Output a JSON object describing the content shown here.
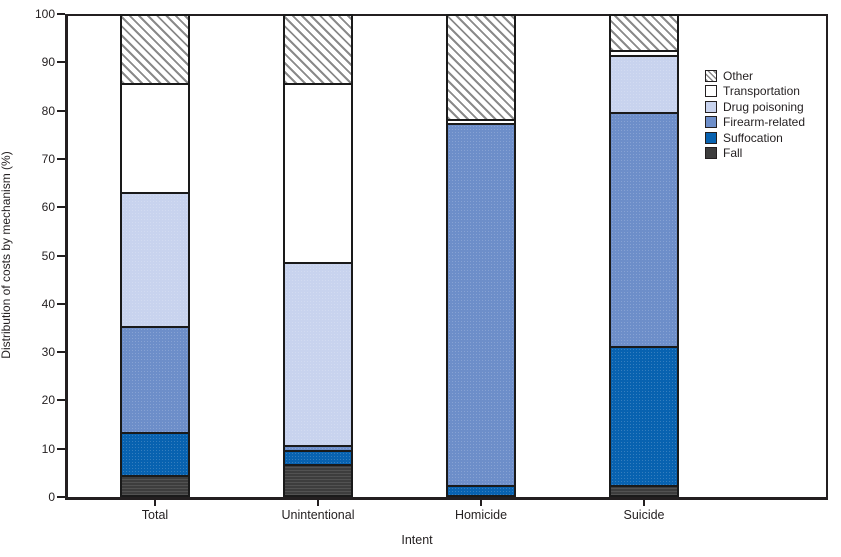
{
  "figure": {
    "ylabel": "Distribution of costs by mechanism (%)",
    "xlabel": "Intent"
  },
  "legend": {
    "items": [
      {
        "label": "Other"
      },
      {
        "label": "Transportation"
      },
      {
        "label": "Drug poisoning"
      },
      {
        "label": "Firearm-related"
      },
      {
        "label": "Suffocation"
      },
      {
        "label": "Fall"
      }
    ]
  },
  "colors": {
    "fall": "#3d3d3d",
    "suffocation": "#0862b0",
    "firearm_related": "#6d8ec9",
    "drug_poisoning": "#c8d3ee",
    "transportation": "#ffffff",
    "other_hatch_line": "#8a8a8a",
    "axis": "#231f20",
    "segment_border": "#1a1a1a"
  },
  "chart_data": {
    "type": "bar",
    "stacked": true,
    "title": "",
    "xlabel": "Intent",
    "ylabel": "Distribution of costs by mechanism (%)",
    "categories": [
      "Total",
      "Unintentional",
      "Homicide",
      "Suicide"
    ],
    "series": [
      {
        "name": "Fall",
        "color": "#3d3d3d",
        "pattern": "fall-texture",
        "values": [
          4.5,
          6.8,
          0,
          2.4
        ]
      },
      {
        "name": "Suffocation",
        "color": "#0862b0",
        "pattern": "dot-texture",
        "values": [
          9.0,
          3.0,
          2.5,
          28.9
        ]
      },
      {
        "name": "Firearm-related",
        "color": "#6d8ec9",
        "pattern": "dot-texture",
        "values": [
          22.0,
          0.9,
          74.9,
          48.4
        ]
      },
      {
        "name": "Drug poisoning",
        "color": "#c8d3ee",
        "pattern": "dot-texture",
        "values": [
          27.7,
          37.9,
          0,
          11.8
        ]
      },
      {
        "name": "Transportation",
        "color": "#ffffff",
        "pattern": "none",
        "values": [
          22.6,
          37.2,
          0.9,
          1.0
        ]
      },
      {
        "name": "Other",
        "color": "hatch",
        "pattern": "diagonal-hatch",
        "values": [
          14.2,
          14.2,
          21.7,
          7.5
        ]
      }
    ],
    "ylim": [
      0,
      100
    ],
    "yticks": [
      0,
      10,
      20,
      30,
      40,
      50,
      60,
      70,
      80,
      90,
      100
    ],
    "grid": false,
    "legend_position": "top-right-inside",
    "legend_order": [
      "Other",
      "Transportation",
      "Drug poisoning",
      "Firearm-related",
      "Suffocation",
      "Fall"
    ]
  }
}
